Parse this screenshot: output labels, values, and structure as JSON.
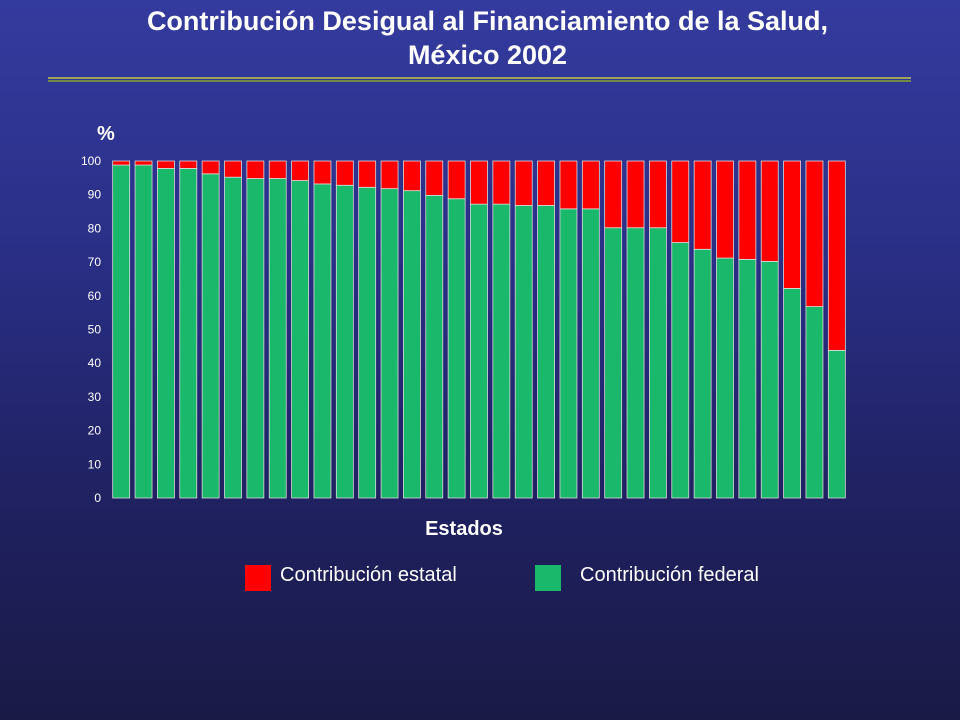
{
  "header": {
    "title_line1": "Contribución Desigual al Financiamiento de la Salud,",
    "title_line2": "México 2002"
  },
  "chart_data": {
    "type": "bar",
    "stacked": true,
    "ylabel": "%",
    "xlabel": "Estados",
    "ylim": [
      0,
      100
    ],
    "yticks": [
      0,
      10,
      20,
      30,
      40,
      50,
      60,
      70,
      80,
      90,
      100
    ],
    "categories": [
      "",
      "",
      "",
      "",
      "",
      "",
      "",
      "",
      "",
      "",
      "",
      "",
      "",
      "",
      "",
      "",
      "",
      "",
      "",
      "",
      "",
      "",
      "",
      "",
      "",
      "",
      "",
      "",
      "",
      "",
      "",
      "",
      ""
    ],
    "series": [
      {
        "name": "Contribución federal",
        "color": "#19b86a",
        "values": [
          98.8,
          98.8,
          97.8,
          97.8,
          96.2,
          95.2,
          94.8,
          94.8,
          94.2,
          93.2,
          92.8,
          92.2,
          91.8,
          91.2,
          89.8,
          88.8,
          87.2,
          87.2,
          86.8,
          86.8,
          85.8,
          85.8,
          80.2,
          80.2,
          80.2,
          75.8,
          73.8,
          71.2,
          70.8,
          70.2,
          62.2,
          56.8,
          43.8
        ]
      },
      {
        "name": "Contribución estatal",
        "color": "#ff0000",
        "values": [
          1.2,
          1.2,
          2.2,
          2.2,
          3.8,
          4.8,
          5.2,
          5.2,
          5.8,
          6.8,
          7.2,
          7.8,
          8.2,
          8.8,
          10.2,
          11.2,
          12.8,
          12.8,
          13.2,
          13.2,
          14.2,
          14.2,
          19.8,
          19.8,
          19.8,
          24.2,
          26.2,
          28.8,
          29.2,
          29.8,
          37.8,
          43.2,
          56.2
        ]
      }
    ],
    "legend": [
      {
        "label": "Contribución estatal",
        "color": "#ff0000"
      },
      {
        "label": "Contribución federal",
        "color": "#19b86a"
      }
    ],
    "legend_position": "bottom",
    "grid": false
  }
}
